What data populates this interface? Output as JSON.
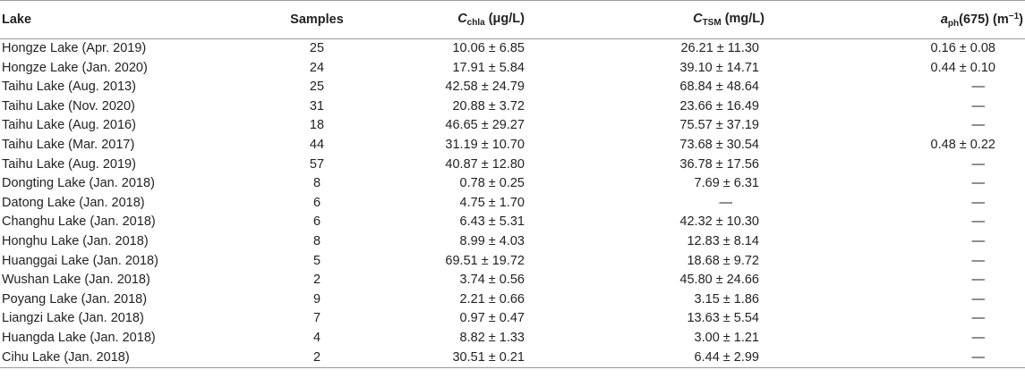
{
  "table": {
    "headers": {
      "lake": "Lake",
      "samples": "Samples",
      "chla_symbol": "C",
      "chla_sub": "chla",
      "chla_unit": " (μg/L)",
      "tsm_symbol": "C",
      "tsm_sub": "TSM",
      "tsm_unit": " (mg/L)",
      "aph_symbol": "a",
      "aph_sub": "ph",
      "aph_mid": "(675) (m",
      "aph_sup": "−1",
      "aph_end": ")"
    },
    "rows": [
      {
        "lake": "Hongze Lake (Apr. 2019)",
        "samples": "25",
        "chla": "10.06 ± 6.85",
        "tsm": "26.21 ± 11.30",
        "aph": "0.16 ± 0.08"
      },
      {
        "lake": "Hongze Lake (Jan. 2020)",
        "samples": "24",
        "chla": "17.91 ± 5.84",
        "tsm": "39.10 ± 14.71",
        "aph": "0.44 ± 0.10"
      },
      {
        "lake": "Taihu Lake (Aug. 2013)",
        "samples": "25",
        "chla": "42.58 ± 24.79",
        "tsm": "68.84 ± 48.64",
        "aph": "—"
      },
      {
        "lake": "Taihu Lake (Nov. 2020)",
        "samples": "31",
        "chla": "20.88 ± 3.72",
        "tsm": "23.66 ± 16.49",
        "aph": "—"
      },
      {
        "lake": "Taihu Lake (Aug. 2016)",
        "samples": "18",
        "chla": "46.65 ± 29.27",
        "tsm": "75.57 ± 37.19",
        "aph": "—"
      },
      {
        "lake": "Taihu Lake (Mar. 2017)",
        "samples": "44",
        "chla": "31.19 ± 10.70",
        "tsm": "73.68 ± 30.54",
        "aph": "0.48 ± 0.22"
      },
      {
        "lake": "Taihu Lake (Aug. 2019)",
        "samples": "57",
        "chla": "40.87 ± 12.80",
        "tsm": "36.78 ± 17.56",
        "aph": "—"
      },
      {
        "lake": "Dongting Lake (Jan. 2018)",
        "samples": "8",
        "chla": "0.78 ± 0.25",
        "tsm": "7.69 ± 6.31",
        "aph": "—"
      },
      {
        "lake": "Datong Lake (Jan. 2018)",
        "samples": "6",
        "chla": "4.75 ± 1.70",
        "tsm": "—",
        "aph": "—"
      },
      {
        "lake": "Changhu Lake (Jan. 2018)",
        "samples": "6",
        "chla": "6.43 ± 5.31",
        "tsm": "42.32 ± 10.30",
        "aph": "—"
      },
      {
        "lake": "Honghu Lake (Jan. 2018)",
        "samples": "8",
        "chla": "8.99 ± 4.03",
        "tsm": "12.83 ± 8.14",
        "aph": "—"
      },
      {
        "lake": "Huanggai Lake (Jan. 2018)",
        "samples": "5",
        "chla": "69.51 ± 19.72",
        "tsm": "18.68 ± 9.72",
        "aph": "—"
      },
      {
        "lake": "Wushan Lake (Jan. 2018)",
        "samples": "2",
        "chla": "3.74 ± 0.56",
        "tsm": "45.80 ± 24.66",
        "aph": "—"
      },
      {
        "lake": "Poyang Lake (Jan. 2018)",
        "samples": "9",
        "chla": "2.21 ± 0.66",
        "tsm": "3.15 ± 1.86",
        "aph": "—"
      },
      {
        "lake": "Liangzi Lake (Jan. 2018)",
        "samples": "7",
        "chla": "0.97 ± 0.47",
        "tsm": "13.63 ± 5.54",
        "aph": "—"
      },
      {
        "lake": "Huangda Lake (Jan. 2018)",
        "samples": "4",
        "chla": "8.82 ± 1.33",
        "tsm": "3.00 ± 1.21",
        "aph": "—"
      },
      {
        "lake": "Cihu Lake (Jan. 2018)",
        "samples": "2",
        "chla": "30.51 ± 0.21",
        "tsm": "6.44 ± 2.99",
        "aph": "—"
      }
    ]
  },
  "colors": {
    "text": "#222222",
    "rule": "#9a9a9a",
    "background": "#ffffff"
  }
}
